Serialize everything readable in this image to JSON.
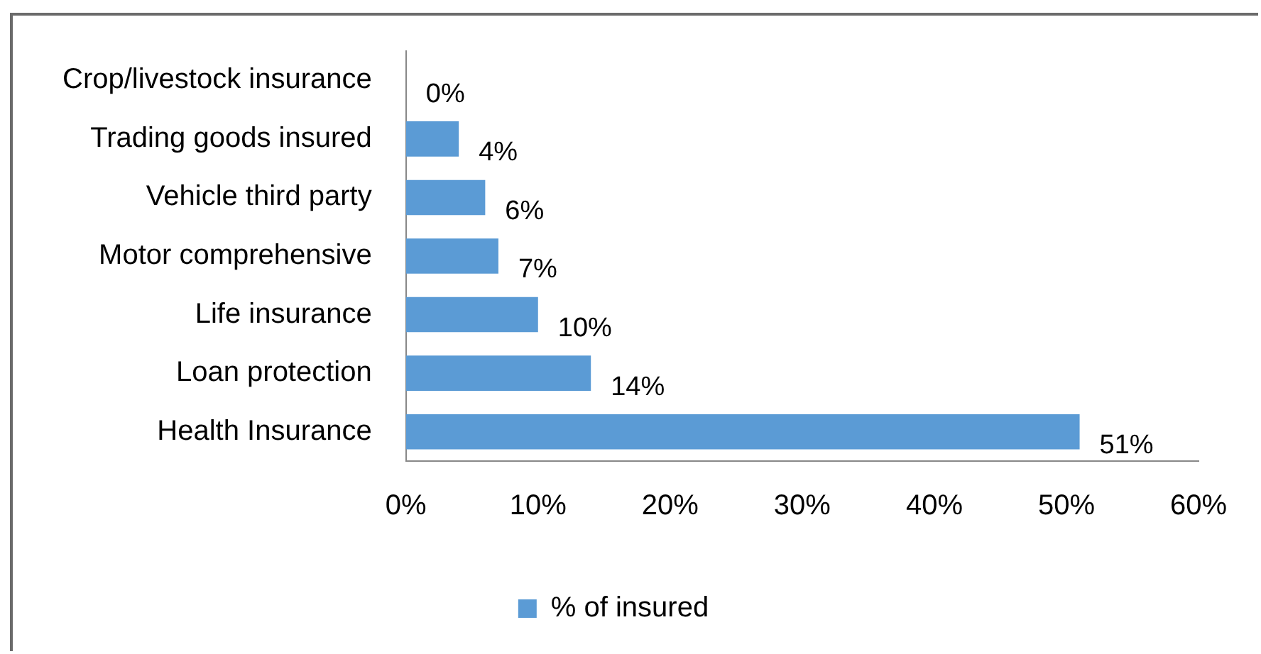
{
  "chart_data": {
    "type": "bar",
    "orientation": "horizontal",
    "categories": [
      "Crop/livestock insurance",
      "Trading goods insured",
      "Vehicle third party",
      "Motor comprehensive",
      "Life insurance",
      "Loan protection",
      "Health Insurance"
    ],
    "series": [
      {
        "name": "% of insured",
        "color": "#5b9bd5",
        "values": [
          0,
          4,
          6,
          7,
          10,
          14,
          51
        ],
        "value_labels": [
          "0%",
          "4%",
          "6%",
          "7%",
          "10%",
          "14%",
          "51%"
        ]
      }
    ],
    "xlim": [
      0,
      60
    ],
    "xticks": [
      {
        "value": 0,
        "label": "0%"
      },
      {
        "value": 10,
        "label": "10%"
      },
      {
        "value": 20,
        "label": "20%"
      },
      {
        "value": 30,
        "label": "30%"
      },
      {
        "value": 40,
        "label": "40%"
      },
      {
        "value": 50,
        "label": "50%"
      },
      {
        "value": 60,
        "label": "60%"
      }
    ],
    "grid": false,
    "legend": "bottom"
  }
}
